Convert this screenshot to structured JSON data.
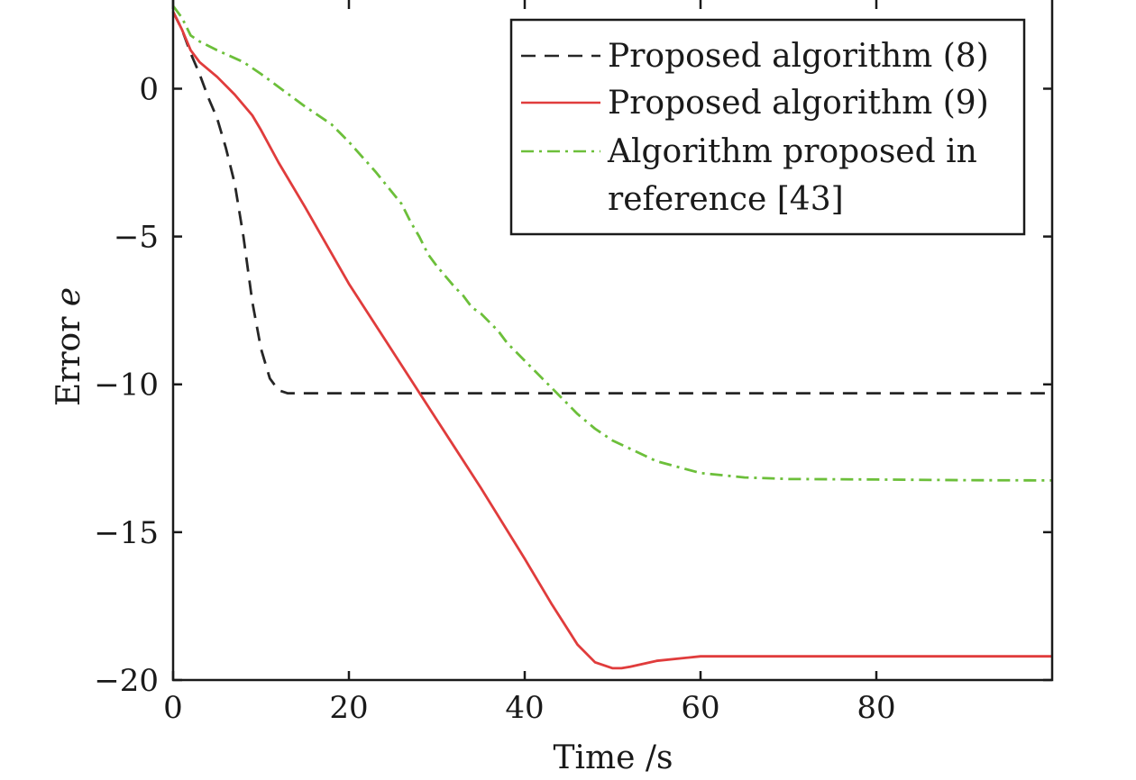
{
  "chart_data": {
    "type": "line",
    "xlabel": "Time /s",
    "ylabel_text": "Error ",
    "ylabel_var": "e",
    "xlim": [
      0,
      100
    ],
    "ylim": [
      -20,
      3
    ],
    "xticks": [
      0,
      20,
      40,
      60,
      80
    ],
    "xtick_labels": [
      "0",
      "20",
      "40",
      "60",
      "80"
    ],
    "yticks": [
      0,
      -5,
      -10,
      -15,
      -20
    ],
    "ytick_labels": [
      "0",
      "−5",
      "−10",
      "−15",
      "−20"
    ],
    "grid": false,
    "legend_position": "top-right",
    "series": [
      {
        "name": "Proposed algorithm (8)",
        "color": "#262626",
        "dash": "16 10",
        "x": [
          0,
          1,
          2,
          3,
          4,
          5,
          6,
          7,
          8,
          9,
          10,
          11,
          12,
          13,
          14,
          16,
          20,
          30,
          40,
          50,
          60,
          70,
          80,
          90,
          100
        ],
        "y": [
          2.6,
          2.0,
          1.2,
          0.5,
          -0.3,
          -1.0,
          -2.0,
          -3.2,
          -5.0,
          -7.2,
          -8.8,
          -9.8,
          -10.2,
          -10.3,
          -10.3,
          -10.3,
          -10.3,
          -10.3,
          -10.3,
          -10.3,
          -10.3,
          -10.3,
          -10.3,
          -10.3,
          -10.3
        ]
      },
      {
        "name": "Proposed algorithm (9)",
        "color": "#e03c3c",
        "dash": "",
        "x": [
          0,
          1,
          2,
          3,
          5,
          7,
          9,
          10,
          12,
          15,
          20,
          25,
          30,
          35,
          40,
          43,
          46,
          48,
          50,
          51,
          52,
          55,
          60,
          70,
          80,
          90,
          100
        ],
        "y": [
          2.6,
          2.0,
          1.3,
          0.9,
          0.4,
          -0.2,
          -0.9,
          -1.4,
          -2.5,
          -4.0,
          -6.6,
          -8.9,
          -11.2,
          -13.5,
          -15.9,
          -17.4,
          -18.8,
          -19.4,
          -19.6,
          -19.6,
          -19.55,
          -19.35,
          -19.2,
          -19.2,
          -19.2,
          -19.2,
          -19.2
        ]
      },
      {
        "name": "Algorithm proposed in reference [43]",
        "legend_lines": [
          "Algorithm proposed in",
          "reference [43]"
        ],
        "color": "#6cbf3a",
        "dash": "14 6 3 6",
        "x": [
          0,
          1,
          2,
          3,
          5,
          8,
          10,
          15,
          18,
          20,
          23,
          26,
          27,
          28,
          29,
          30,
          32,
          33,
          34,
          35,
          36,
          37,
          38,
          39,
          40,
          41,
          42,
          43,
          44,
          45,
          46,
          48,
          50,
          55,
          60,
          65,
          70,
          80,
          90,
          100
        ],
        "y": [
          2.8,
          2.4,
          1.8,
          1.6,
          1.3,
          0.9,
          0.5,
          -0.6,
          -1.2,
          -1.8,
          -2.8,
          -3.9,
          -4.5,
          -5.0,
          -5.6,
          -6.0,
          -6.7,
          -7.0,
          -7.4,
          -7.6,
          -7.9,
          -8.2,
          -8.6,
          -8.9,
          -9.2,
          -9.5,
          -9.8,
          -10.1,
          -10.4,
          -10.7,
          -11.0,
          -11.5,
          -11.9,
          -12.6,
          -13.0,
          -13.15,
          -13.2,
          -13.22,
          -13.24,
          -13.25
        ]
      }
    ]
  }
}
